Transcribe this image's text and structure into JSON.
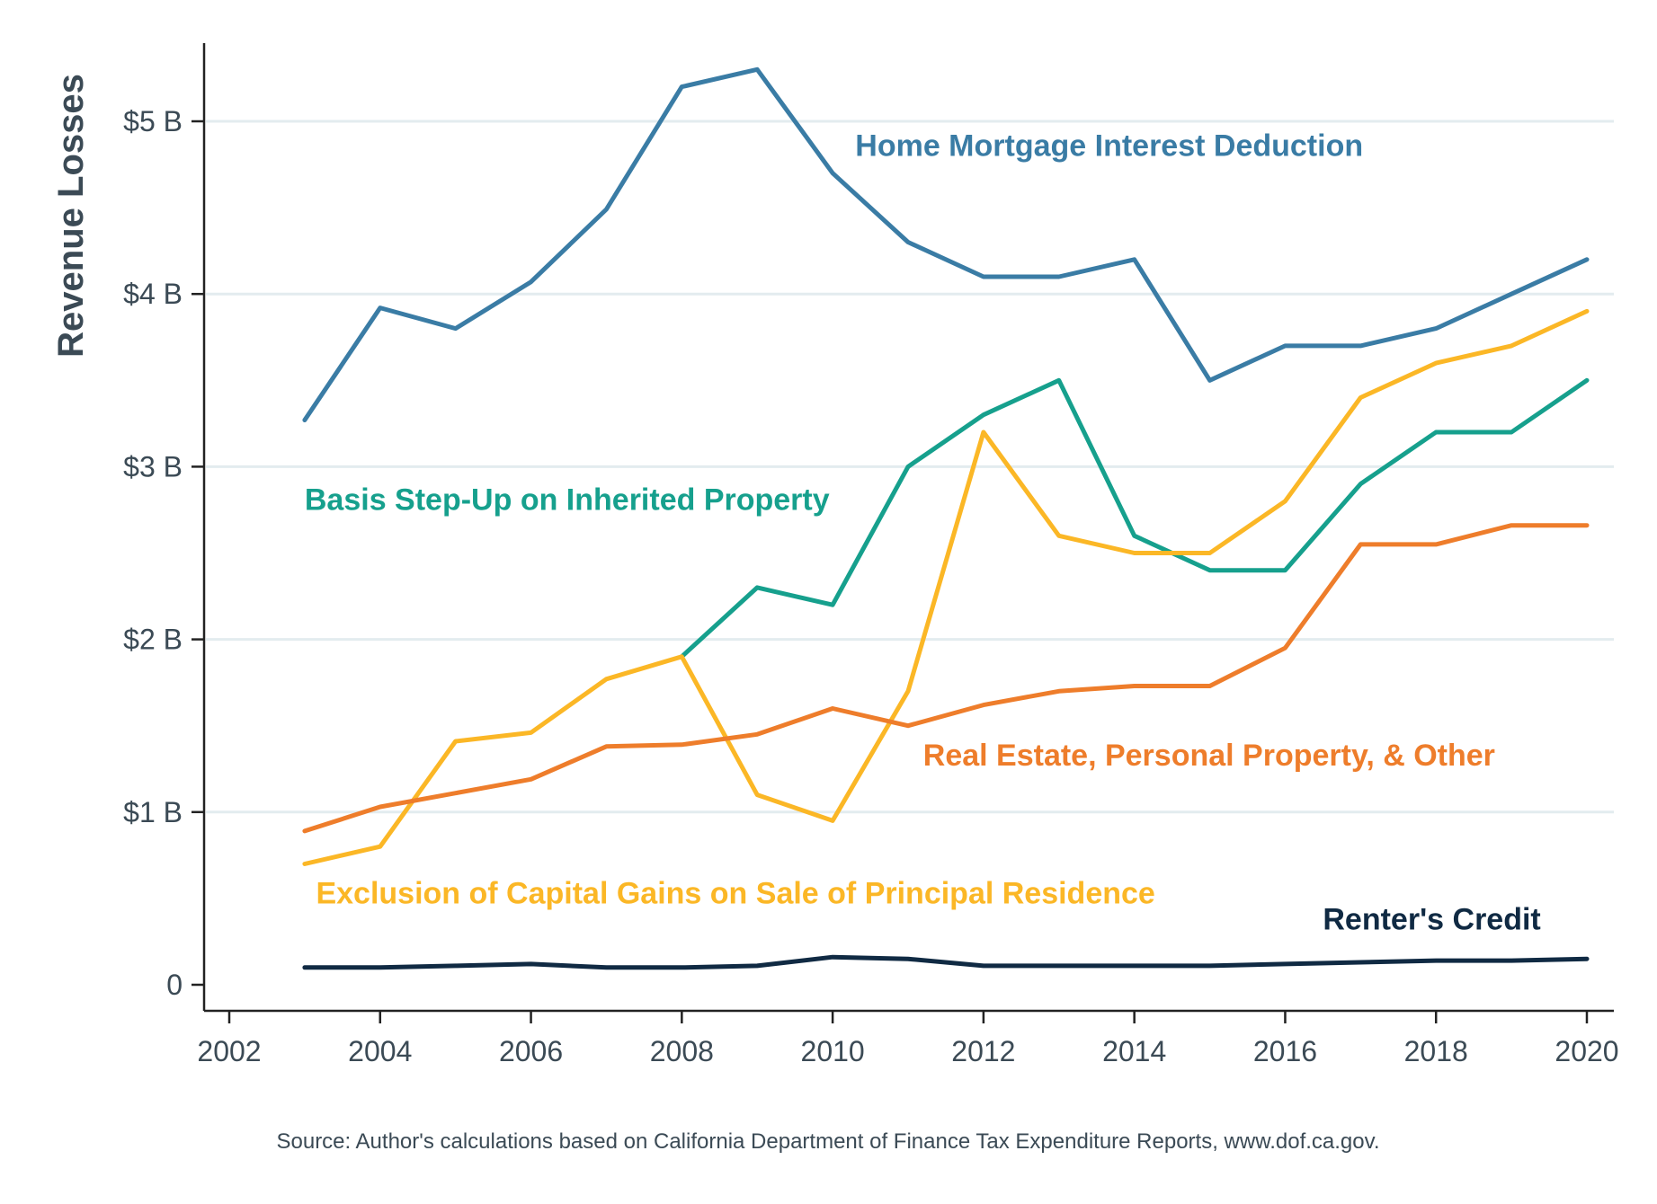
{
  "chart_data": {
    "type": "line",
    "ylabel": "Revenue Losses",
    "xlabel": "",
    "xlim": [
      2002,
      2020
    ],
    "ylim": [
      0,
      5.5
    ],
    "x_ticks": [
      2002,
      2004,
      2006,
      2008,
      2010,
      2012,
      2014,
      2016,
      2018,
      2020
    ],
    "y_ticks": [
      {
        "value": 0,
        "label": "0"
      },
      {
        "value": 1,
        "label": "$1 B"
      },
      {
        "value": 2,
        "label": "$2 B"
      },
      {
        "value": 3,
        "label": "$3 B"
      },
      {
        "value": 4,
        "label": "$4 B"
      },
      {
        "value": 5,
        "label": "$5 B"
      }
    ],
    "grid": "horizontal",
    "source": "Source: Author's calculations based on California Department of Finance Tax Expenditure Reports, www.dof.ca.gov.",
    "series": [
      {
        "name": "Home Mortgage Interest Deduction",
        "color": "#3a7ca5",
        "label_at": [
          2010.3,
          4.8
        ],
        "x": [
          2003,
          2004,
          2005,
          2006,
          2007,
          2008,
          2009,
          2010,
          2011,
          2012,
          2013,
          2014,
          2015,
          2016,
          2017,
          2018,
          2019,
          2020
        ],
        "values": [
          3.27,
          3.92,
          3.8,
          4.07,
          4.49,
          5.2,
          5.3,
          4.7,
          4.3,
          4.1,
          4.1,
          4.2,
          3.5,
          3.7,
          3.7,
          3.8,
          4.0,
          4.2
        ]
      },
      {
        "name": "Basis Step-Up on Inherited Property",
        "color": "#16a08d",
        "label_at": [
          2003.0,
          2.75
        ],
        "x": [
          2008,
          2009,
          2010,
          2011,
          2012,
          2013,
          2014,
          2015,
          2016,
          2017,
          2018,
          2019,
          2020
        ],
        "values": [
          1.9,
          2.3,
          2.2,
          3.0,
          3.3,
          3.5,
          2.6,
          2.4,
          2.4,
          2.9,
          3.2,
          3.2,
          3.5
        ]
      },
      {
        "name": "Exclusion of Capital Gains on Sale of Principal Residence",
        "color": "#fbb726",
        "label_at": [
          2003.15,
          0.47
        ],
        "x": [
          2003,
          2004,
          2005,
          2006,
          2007,
          2008,
          2009,
          2010,
          2011,
          2012,
          2013,
          2014,
          2015,
          2016,
          2017,
          2018,
          2019,
          2020
        ],
        "values": [
          0.7,
          0.8,
          1.41,
          1.46,
          1.77,
          1.9,
          1.1,
          0.95,
          1.7,
          3.2,
          2.6,
          2.5,
          2.5,
          2.8,
          3.4,
          3.6,
          3.7,
          3.9
        ]
      },
      {
        "name": "Real Estate, Personal Property, & Other",
        "color": "#ee7d2b",
        "label_at": [
          2011.2,
          1.27
        ],
        "x": [
          2003,
          2004,
          2005,
          2006,
          2007,
          2008,
          2009,
          2010,
          2011,
          2012,
          2013,
          2014,
          2015,
          2016,
          2017,
          2018,
          2019,
          2020
        ],
        "values": [
          0.89,
          1.03,
          1.11,
          1.19,
          1.38,
          1.39,
          1.45,
          1.6,
          1.5,
          1.62,
          1.7,
          1.73,
          1.73,
          1.95,
          2.55,
          2.55,
          2.66,
          2.66
        ]
      },
      {
        "name": "Renter's Credit",
        "color": "#102a43",
        "label_at": [
          2016.5,
          0.32
        ],
        "x": [
          2003,
          2004,
          2005,
          2006,
          2007,
          2008,
          2009,
          2010,
          2011,
          2012,
          2013,
          2014,
          2015,
          2016,
          2017,
          2018,
          2019,
          2020
        ],
        "values": [
          0.1,
          0.1,
          0.11,
          0.12,
          0.1,
          0.1,
          0.11,
          0.16,
          0.15,
          0.11,
          0.11,
          0.11,
          0.11,
          0.12,
          0.13,
          0.14,
          0.14,
          0.15
        ]
      }
    ]
  }
}
